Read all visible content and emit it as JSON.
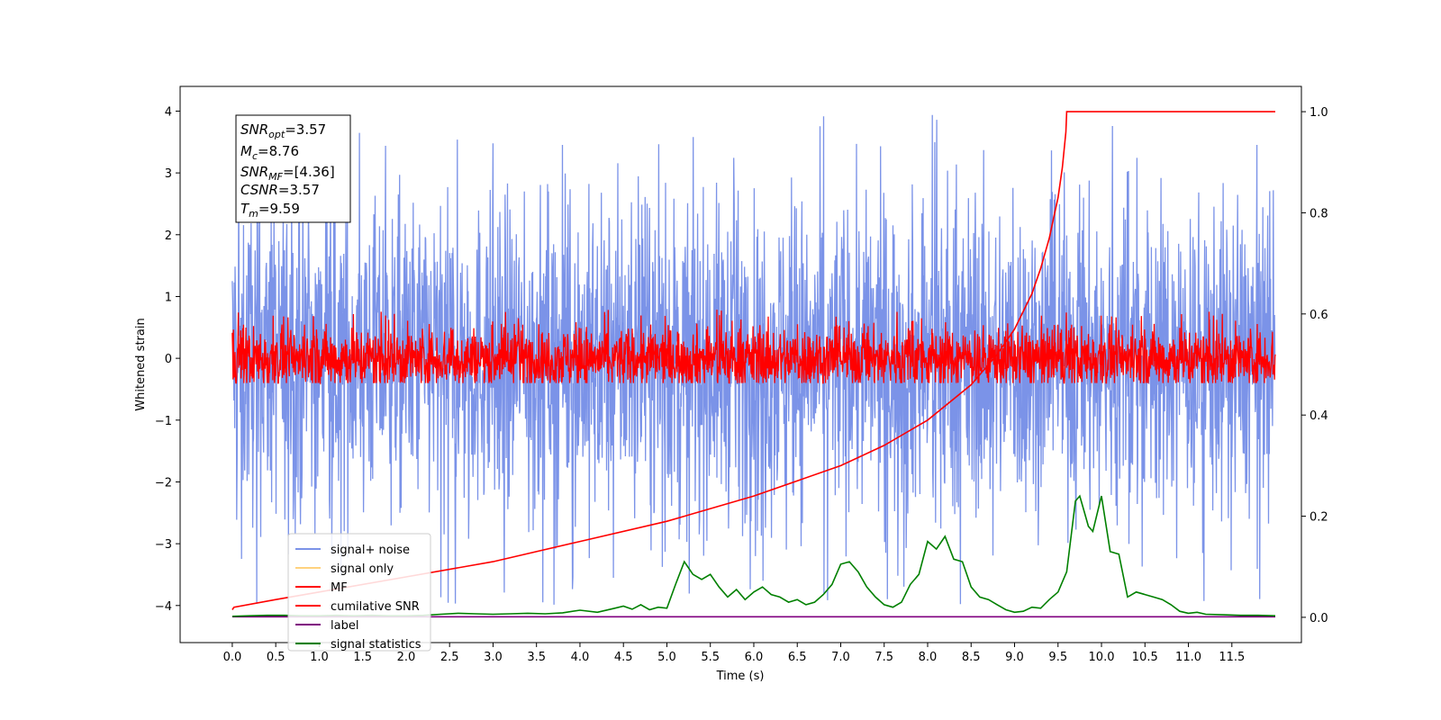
{
  "chart_data": {
    "type": "line",
    "title": "",
    "xlabel": "Time (s)",
    "ylabel": "Whitened strain",
    "xlim": [
      -0.6,
      12.3
    ],
    "ylim": [
      -4.6,
      4.4
    ],
    "y2lim": [
      -0.05,
      1.05
    ],
    "x_ticks": [
      "0.0",
      "0.5",
      "1.0",
      "1.5",
      "2.0",
      "2.5",
      "3.0",
      "3.5",
      "4.0",
      "4.5",
      "5.0",
      "5.5",
      "6.0",
      "6.5",
      "7.0",
      "7.5",
      "8.0",
      "8.5",
      "9.0",
      "9.5",
      "10.0",
      "10.5",
      "11.0",
      "11.5"
    ],
    "y_ticks": [
      "4",
      "3",
      "2",
      "1",
      "0",
      "−1",
      "−2",
      "−3",
      "−4"
    ],
    "y2_ticks": [
      "1.0",
      "0.8",
      "0.6",
      "0.4",
      "0.2",
      "0.0"
    ],
    "grid": false,
    "legend_position": "lower-left",
    "annotation": {
      "snr_opt": {
        "base": "SNR",
        "sub": "opt",
        "value": "=3.57"
      },
      "mc": {
        "base": "M",
        "sub": "c",
        "value": "=8.76"
      },
      "snr_mf": {
        "base": "SNR",
        "sub": "MF",
        "value": "=[4.36]"
      },
      "csnr": {
        "base": "CSNR",
        "value": "=3.57"
      },
      "tm": {
        "base": "T",
        "sub": "m",
        "value": "=9.59"
      }
    },
    "series": [
      {
        "name": "signal+ noise",
        "color": "#7b93e8",
        "axis": "left",
        "kind": "noise",
        "x_range": [
          0,
          12
        ],
        "center": 0.0,
        "spread": 1.25,
        "peak_range": [
          -4.0,
          4.0
        ]
      },
      {
        "name": "signal only",
        "color": "#ffd27f",
        "axis": "left",
        "kind": "flat",
        "values_hidden": true
      },
      {
        "name": "MF",
        "color": "#ff0000",
        "axis": "left",
        "kind": "noise",
        "x_range": [
          0,
          12
        ],
        "center": 0.0,
        "spread": 0.25,
        "peak_range": [
          -0.4,
          0.8
        ]
      },
      {
        "name": "cumilative SNR",
        "color": "#ff0000",
        "axis": "right",
        "x": [
          0.0,
          0.02,
          0.5,
          1.0,
          2.0,
          3.0,
          4.0,
          5.0,
          6.0,
          7.0,
          7.5,
          8.0,
          8.5,
          8.8,
          9.0,
          9.2,
          9.3,
          9.4,
          9.45,
          9.5,
          9.55,
          9.59,
          9.6,
          12.0
        ],
        "y": [
          0.015,
          0.02,
          0.035,
          0.05,
          0.08,
          0.11,
          0.15,
          0.19,
          0.24,
          0.3,
          0.34,
          0.39,
          0.46,
          0.52,
          0.57,
          0.64,
          0.69,
          0.75,
          0.79,
          0.83,
          0.89,
          0.96,
          1.0,
          1.0
        ]
      },
      {
        "name": "label",
        "color": "#800080",
        "axis": "right",
        "x": [
          0.0,
          12.0
        ],
        "y": [
          0.001,
          0.001
        ]
      },
      {
        "name": "signal statistics",
        "color": "#008000",
        "axis": "right",
        "x": [
          0.0,
          0.2,
          0.4,
          0.6,
          0.8,
          1.0,
          1.2,
          1.4,
          1.6,
          1.8,
          2.0,
          2.2,
          2.4,
          2.6,
          2.8,
          3.0,
          3.2,
          3.4,
          3.6,
          3.8,
          4.0,
          4.2,
          4.4,
          4.5,
          4.6,
          4.7,
          4.8,
          4.9,
          5.0,
          5.1,
          5.2,
          5.3,
          5.4,
          5.5,
          5.6,
          5.7,
          5.8,
          5.9,
          6.0,
          6.1,
          6.2,
          6.3,
          6.4,
          6.5,
          6.6,
          6.7,
          6.8,
          6.9,
          7.0,
          7.1,
          7.2,
          7.3,
          7.4,
          7.5,
          7.6,
          7.7,
          7.8,
          7.9,
          8.0,
          8.1,
          8.2,
          8.3,
          8.4,
          8.5,
          8.6,
          8.7,
          8.8,
          8.9,
          9.0,
          9.1,
          9.2,
          9.3,
          9.4,
          9.5,
          9.6,
          9.7,
          9.75,
          9.8,
          9.85,
          9.9,
          10.0,
          10.1,
          10.2,
          10.3,
          10.4,
          10.5,
          10.6,
          10.7,
          10.8,
          10.9,
          11.0,
          11.1,
          11.2,
          11.4,
          11.6,
          11.8,
          12.0
        ],
        "y": [
          0.002,
          0.003,
          0.004,
          0.004,
          0.003,
          0.003,
          0.004,
          0.003,
          0.004,
          0.003,
          0.003,
          0.004,
          0.006,
          0.008,
          0.007,
          0.006,
          0.007,
          0.008,
          0.007,
          0.009,
          0.014,
          0.01,
          0.018,
          0.022,
          0.016,
          0.025,
          0.015,
          0.02,
          0.018,
          0.065,
          0.11,
          0.085,
          0.075,
          0.085,
          0.06,
          0.04,
          0.055,
          0.035,
          0.05,
          0.06,
          0.045,
          0.04,
          0.03,
          0.035,
          0.025,
          0.03,
          0.045,
          0.065,
          0.105,
          0.11,
          0.09,
          0.06,
          0.04,
          0.025,
          0.02,
          0.03,
          0.065,
          0.085,
          0.15,
          0.135,
          0.16,
          0.115,
          0.11,
          0.06,
          0.04,
          0.035,
          0.025,
          0.015,
          0.01,
          0.012,
          0.02,
          0.018,
          0.035,
          0.05,
          0.09,
          0.23,
          0.24,
          0.21,
          0.18,
          0.17,
          0.24,
          0.13,
          0.125,
          0.04,
          0.05,
          0.045,
          0.04,
          0.035,
          0.025,
          0.012,
          0.008,
          0.01,
          0.006,
          0.005,
          0.004,
          0.004,
          0.003
        ]
      }
    ]
  }
}
